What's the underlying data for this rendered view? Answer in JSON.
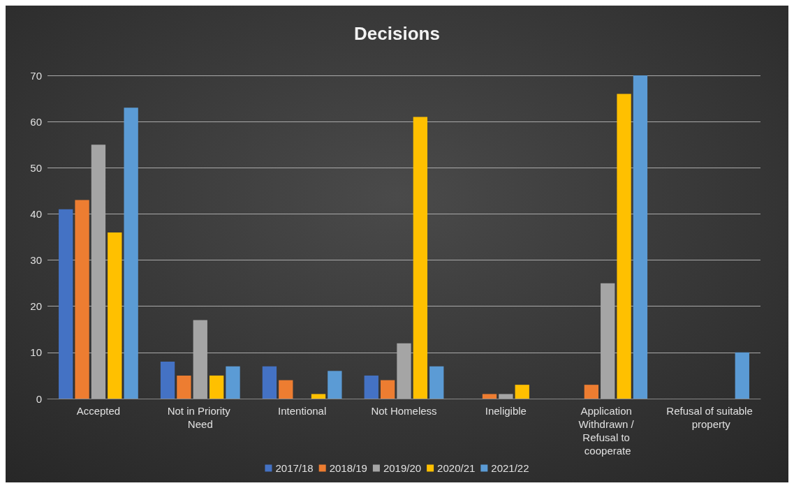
{
  "chart_data": {
    "type": "bar",
    "title": "Decisions",
    "categories": [
      "Accepted",
      "Not in Priority Need",
      "Intentional",
      "Not Homeless",
      "Ineligible",
      "Application Withdrawn / Refusal to cooperate",
      "Refusal of suitable property"
    ],
    "series": [
      {
        "name": "2017/18",
        "color": "#4472c4",
        "values": [
          41,
          8,
          7,
          5,
          0,
          0,
          0
        ]
      },
      {
        "name": "2018/19",
        "color": "#ed7d31",
        "values": [
          43,
          5,
          4,
          4,
          1,
          3,
          0
        ]
      },
      {
        "name": "2019/20",
        "color": "#a5a5a5",
        "values": [
          55,
          17,
          0,
          12,
          1,
          25,
          0
        ]
      },
      {
        "name": "2020/21",
        "color": "#ffc000",
        "values": [
          36,
          5,
          1,
          61,
          3,
          66,
          0
        ]
      },
      {
        "name": "2021/22",
        "color": "#5b9bd5",
        "values": [
          63,
          7,
          6,
          7,
          0,
          70,
          10
        ]
      }
    ],
    "ylim": [
      0,
      70
    ],
    "yticks": [
      0,
      10,
      20,
      30,
      40,
      50,
      60,
      70
    ],
    "grid": "y",
    "legend": "bottom"
  }
}
